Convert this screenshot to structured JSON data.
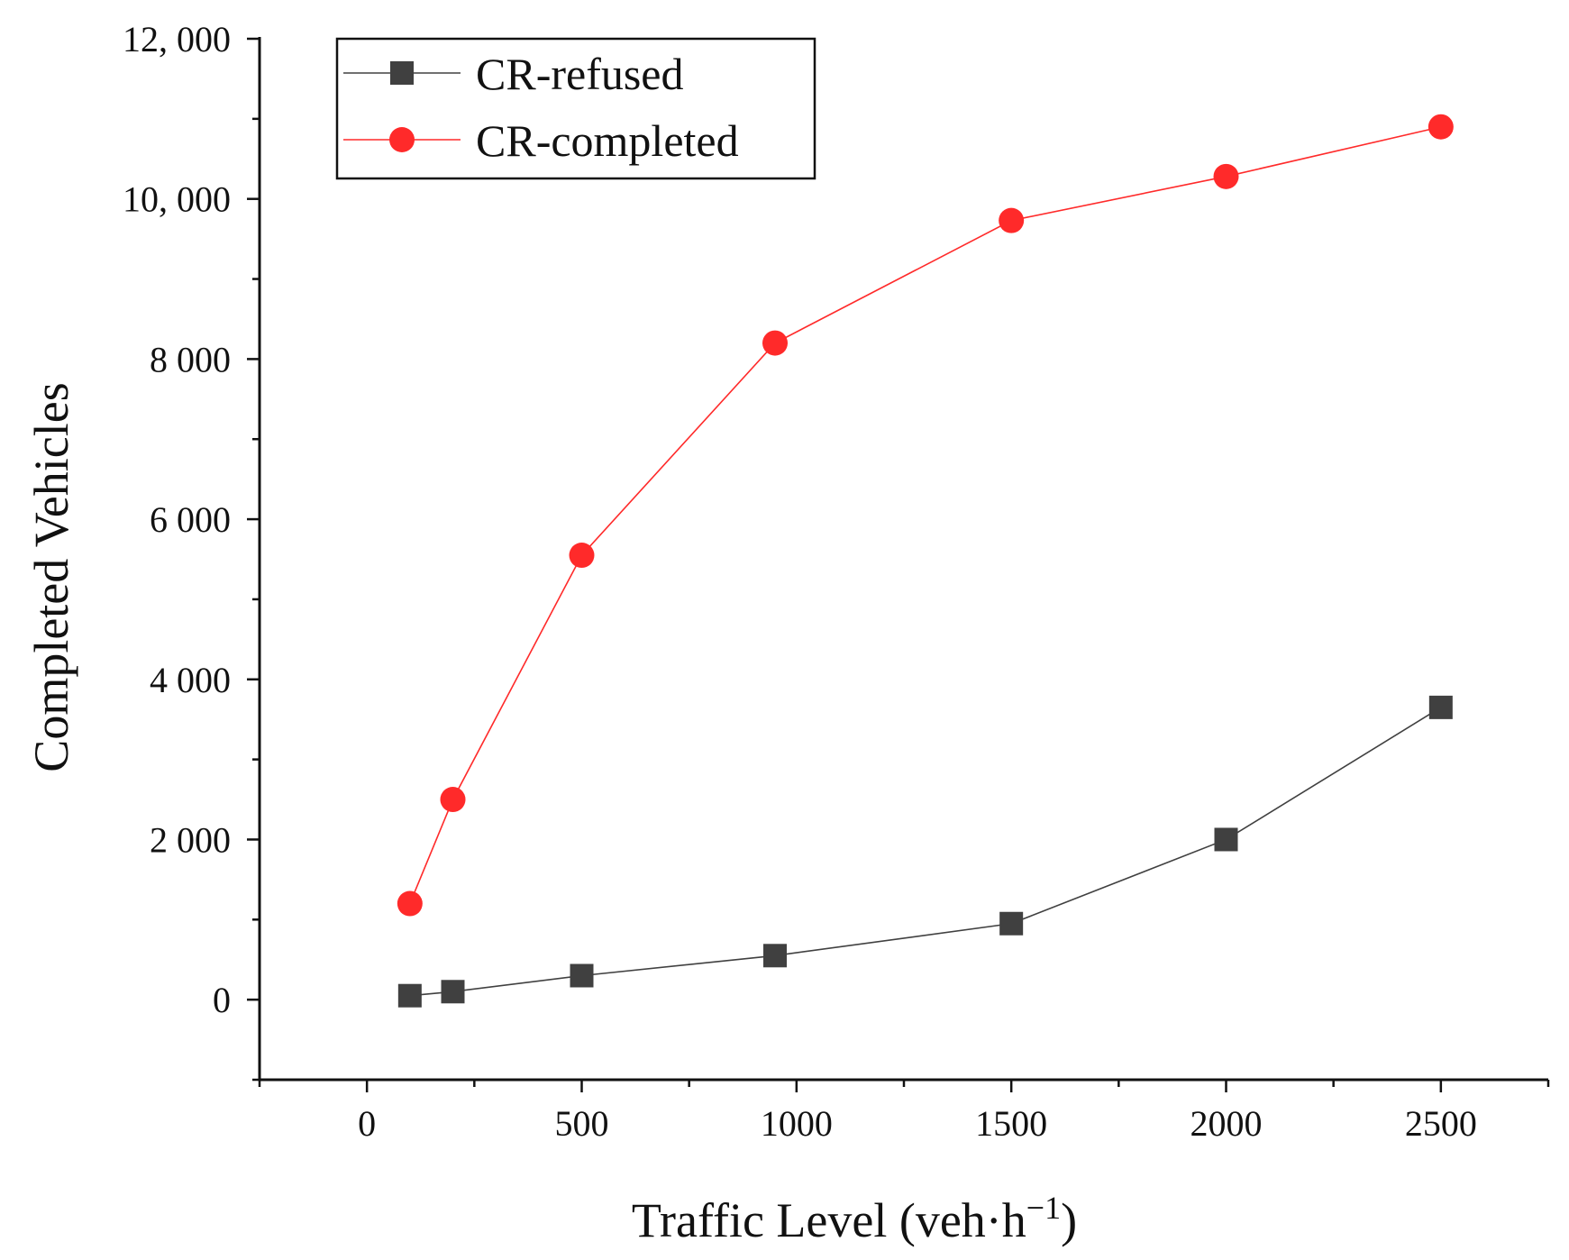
{
  "chart_data": {
    "type": "line",
    "title": "",
    "xlabel": "Traffic Level (veh·h",
    "xlabel_superscript": "−1",
    "xlabel_suffix": ")",
    "ylabel": "Completed Vehicles",
    "xlim": [
      -250,
      2750
    ],
    "ylim": [
      -1000,
      12000
    ],
    "x_ticks": [
      0,
      500,
      1000,
      1500,
      2000,
      2500
    ],
    "x_tick_labels": [
      "0",
      "500",
      "1000",
      "1500",
      "2000",
      "2500"
    ],
    "y_ticks": [
      0,
      2000,
      4000,
      6000,
      8000,
      10000,
      12000
    ],
    "y_tick_labels": [
      "0",
      "2 000",
      "4 000",
      "6 000",
      "8 000",
      "10, 000",
      "12, 000"
    ],
    "grid": false,
    "legend_position": "top-left",
    "series": [
      {
        "name": "CR-refused",
        "color": "#404040",
        "marker": "square",
        "x": [
          100,
          200,
          500,
          950,
          1500,
          2000,
          2500
        ],
        "y": [
          50,
          100,
          300,
          550,
          950,
          2000,
          3650
        ]
      },
      {
        "name": "CR-completed",
        "color": "#ff2a2a",
        "marker": "circle",
        "x": [
          100,
          200,
          500,
          950,
          1500,
          2000,
          2500
        ],
        "y": [
          1200,
          2500,
          5550,
          8200,
          9730,
          10280,
          10900
        ]
      }
    ]
  }
}
